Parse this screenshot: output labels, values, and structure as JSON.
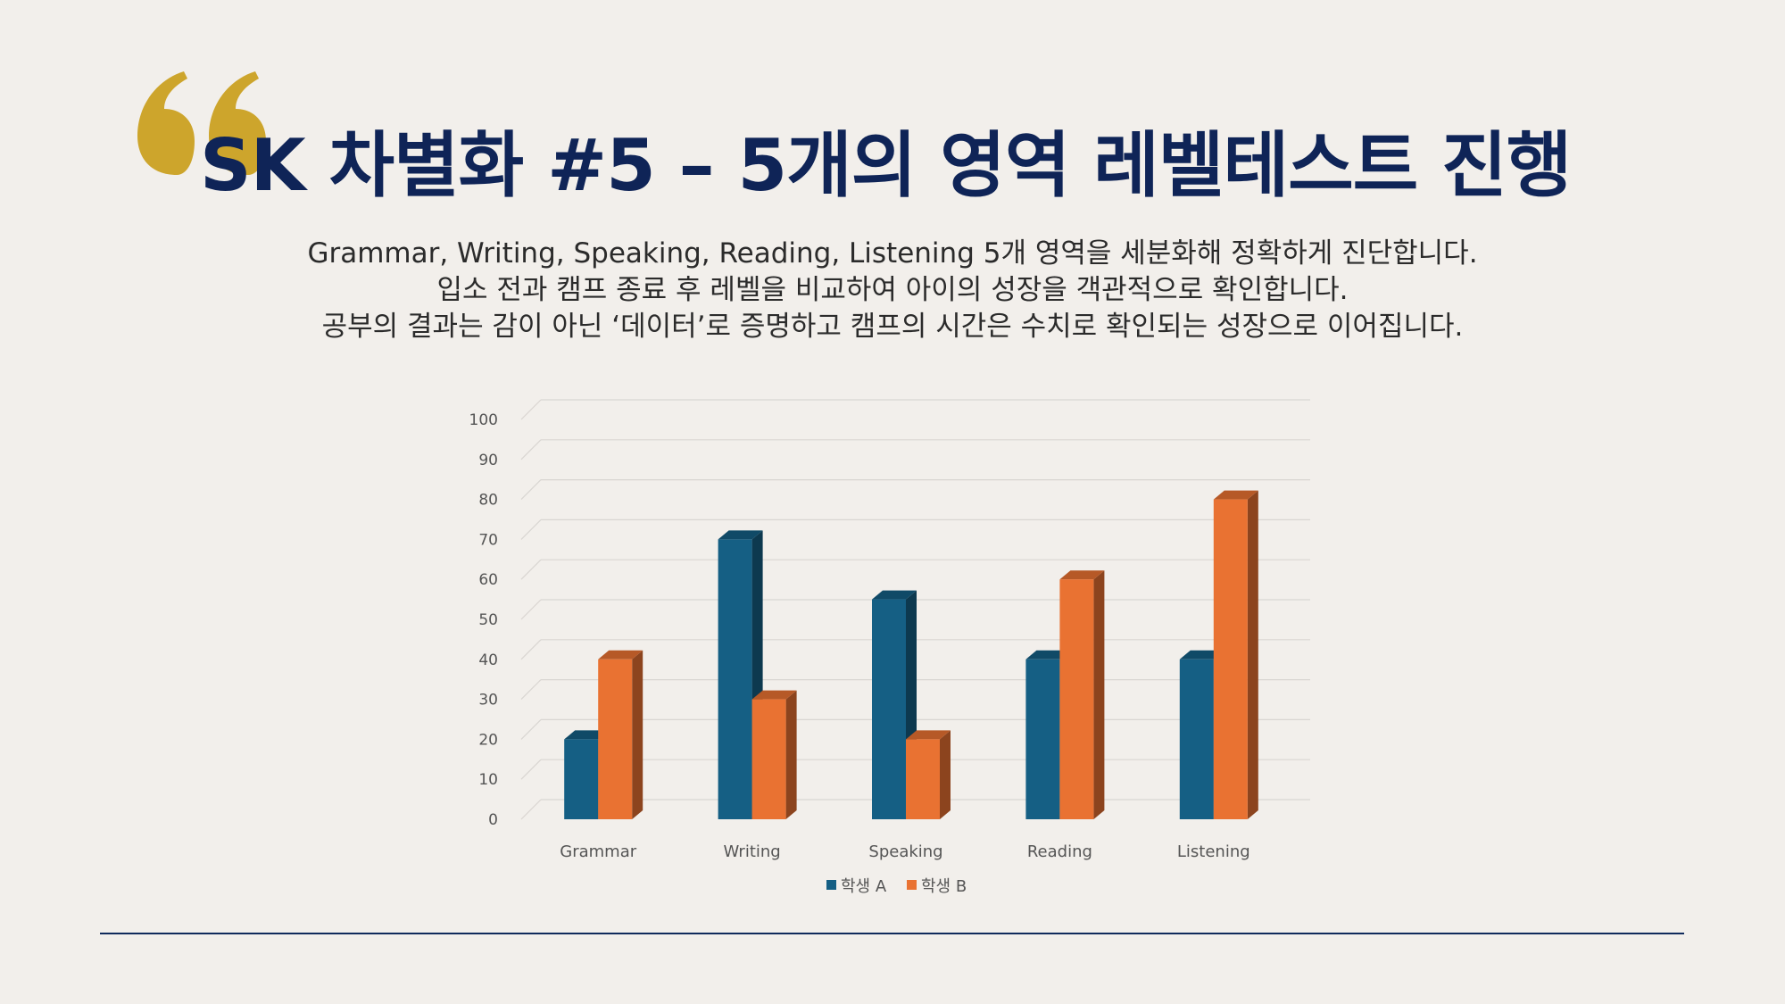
{
  "title": "SK 차별화 #5 – 5개의 영역 레벨테스트 진행",
  "description": [
    "Grammar, Writing, Speaking, Reading, Listening 5개 영역을 세분화해 정확하게 진단합니다.",
    "입소 전과 캠프 종료 후 레벨을 비교하여 아이의 성장을 객관적으로 확인합니다.",
    "공부의 결과는 감이 아닌 ‘데이터’로 증명하고 캠프의 시간은 수치로 확인되는 성장으로 이어집니다."
  ],
  "colors": {
    "title": "#0f2457",
    "quote": "#cda52c",
    "rule": "#102b5c",
    "series_a": "#155f84",
    "series_b": "#e97232"
  },
  "icons": {
    "quote": "quote-icon"
  },
  "chart_data": {
    "type": "bar",
    "style": "3d-clustered-column",
    "categories": [
      "Grammar",
      "Writing",
      "Speaking",
      "Reading",
      "Listening"
    ],
    "series": [
      {
        "name": "학생 A",
        "values": [
          20,
          70,
          55,
          40,
          40
        ]
      },
      {
        "name": "학생 B",
        "values": [
          40,
          30,
          20,
          60,
          80
        ]
      }
    ],
    "y_ticks": [
      0,
      10,
      20,
      30,
      40,
      50,
      60,
      70,
      80,
      90,
      100
    ],
    "ylim": [
      0,
      100
    ],
    "grid": true,
    "legend": "bottom-center"
  }
}
